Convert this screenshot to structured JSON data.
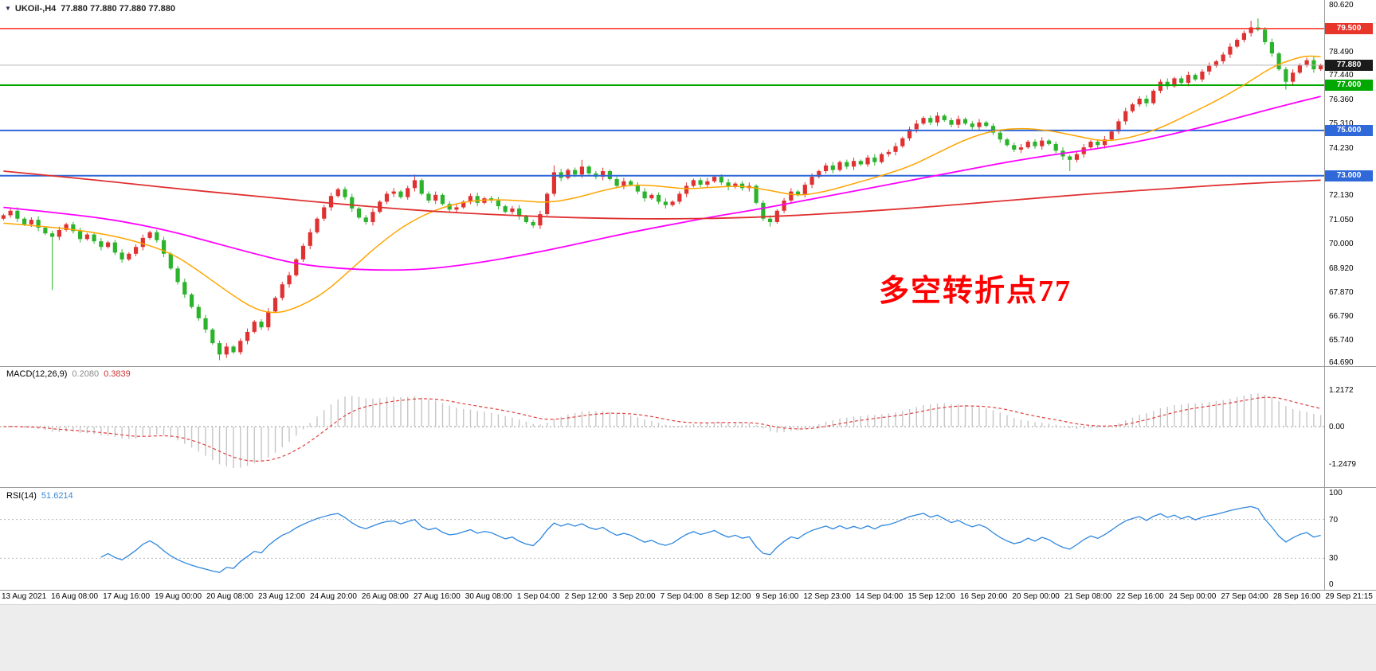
{
  "window": {
    "symbol_label": "UKOil-,H4",
    "quotes": "77.880 77.880 77.880 77.880"
  },
  "annotation": {
    "text": "多空转折点77",
    "color": "#ff0000"
  },
  "indicators": {
    "macd": {
      "label": "MACD(12,26,9)",
      "value_macd": "0.2080",
      "value_signal": "0.3839"
    },
    "rsi": {
      "label": "RSI(14)",
      "value": "51.6214"
    }
  },
  "chart_data": {
    "type": "candlestick",
    "symbol": "UKOil-",
    "timeframe": "H4",
    "price_range": [
      64.69,
      80.62
    ],
    "price_ticks": [
      {
        "text": "80.620",
        "price": 80.62
      },
      {
        "text": "78.490",
        "price": 78.49
      },
      {
        "text": "77.440",
        "price": 77.44
      },
      {
        "text": "76.360",
        "price": 76.36
      },
      {
        "text": "75.310",
        "price": 75.31
      },
      {
        "text": "74.230",
        "price": 74.23
      },
      {
        "text": "72.130",
        "price": 72.13
      },
      {
        "text": "71.050",
        "price": 71.05
      },
      {
        "text": "70.000",
        "price": 70.0
      },
      {
        "text": "68.920",
        "price": 68.92
      },
      {
        "text": "67.870",
        "price": 67.87
      },
      {
        "text": "66.790",
        "price": 66.79
      },
      {
        "text": "65.740",
        "price": 65.74
      },
      {
        "text": "64.690",
        "price": 64.69
      }
    ],
    "level_lines": [
      {
        "text": "79.500",
        "price": 79.5,
        "badge_bg": "#e8352a",
        "line_color": "#ff2b20",
        "line_width": 1.5
      },
      {
        "text": "77.880",
        "price": 77.88,
        "badge_bg": "#1b1b1b",
        "line_color": "#b4b4b4",
        "line_width": 1
      },
      {
        "text": "77.000",
        "price": 77.0,
        "badge_bg": "#00a800",
        "line_color": "#00a800",
        "line_width": 2
      },
      {
        "text": "75.000",
        "price": 75.0,
        "badge_bg": "#2f68d8",
        "line_color": "#2f68d8",
        "line_width": 2
      },
      {
        "text": "73.000",
        "price": 73.0,
        "badge_bg": "#2f68d8",
        "line_color": "#2f68d8",
        "line_width": 2
      }
    ],
    "time_labels": [
      "13 Aug 2021",
      "16 Aug 08:00",
      "17 Aug 16:00",
      "19 Aug 00:00",
      "20 Aug 08:00",
      "23 Aug 12:00",
      "24 Aug 20:00",
      "26 Aug 08:00",
      "27 Aug 16:00",
      "30 Aug 08:00",
      "1 Sep 04:00",
      "2 Sep 12:00",
      "3 Sep 20:00",
      "7 Sep 04:00",
      "8 Sep 12:00",
      "9 Sep 16:00",
      "12 Sep 23:00",
      "14 Sep 04:00",
      "15 Sep 12:00",
      "16 Sep 20:00",
      "20 Sep 00:00",
      "21 Sep 08:00",
      "22 Sep 16:00",
      "24 Sep 00:00",
      "27 Sep 04:00",
      "28 Sep 16:00",
      "29 Sep 21:15"
    ],
    "first_open": 71.1,
    "closes": [
      71.25,
      71.45,
      71.1,
      70.85,
      71.05,
      70.7,
      70.45,
      70.3,
      70.6,
      70.85,
      70.55,
      70.2,
      70.4,
      70.1,
      69.85,
      70.05,
      69.6,
      69.3,
      69.55,
      69.85,
      70.25,
      70.5,
      70.15,
      69.55,
      68.9,
      68.3,
      67.75,
      67.2,
      66.7,
      66.2,
      65.6,
      65.1,
      65.45,
      65.2,
      65.7,
      66.1,
      66.55,
      66.3,
      67.0,
      67.6,
      68.2,
      68.6,
      69.3,
      69.9,
      70.5,
      71.1,
      71.6,
      72.1,
      72.4,
      72.05,
      71.55,
      71.15,
      70.95,
      71.4,
      71.85,
      72.2,
      72.3,
      72.05,
      72.45,
      72.8,
      72.2,
      71.9,
      72.15,
      71.75,
      71.5,
      71.6,
      71.85,
      72.1,
      71.8,
      72.0,
      71.9,
      71.65,
      71.4,
      71.55,
      71.2,
      70.95,
      70.8,
      71.3,
      72.2,
      73.15,
      72.9,
      73.25,
      73.05,
      73.4,
      73.1,
      72.95,
      73.2,
      72.85,
      72.55,
      72.75,
      72.6,
      72.3,
      72.0,
      72.15,
      71.85,
      71.7,
      71.85,
      72.2,
      72.55,
      72.8,
      72.6,
      72.75,
      72.95,
      72.7,
      72.5,
      72.65,
      72.45,
      72.55,
      71.8,
      71.1,
      70.95,
      71.45,
      71.9,
      72.3,
      72.15,
      72.6,
      72.95,
      73.2,
      73.45,
      73.25,
      73.6,
      73.4,
      73.65,
      73.5,
      73.8,
      73.6,
      73.95,
      74.05,
      74.3,
      74.65,
      75.05,
      75.3,
      75.55,
      75.35,
      75.65,
      75.45,
      75.25,
      75.5,
      75.3,
      75.15,
      75.35,
      75.2,
      74.9,
      74.6,
      74.35,
      74.15,
      74.25,
      74.5,
      74.3,
      74.55,
      74.4,
      74.1,
      73.85,
      73.7,
      73.95,
      74.25,
      74.5,
      74.35,
      74.6,
      74.95,
      75.4,
      75.85,
      76.15,
      76.4,
      76.2,
      76.75,
      77.15,
      76.95,
      77.3,
      77.1,
      77.45,
      77.25,
      77.6,
      77.85,
      78.05,
      78.35,
      78.7,
      79.0,
      79.3,
      79.55,
      79.45,
      78.9,
      78.4,
      77.7,
      77.15,
      77.55,
      77.9,
      78.1,
      77.7,
      77.88
    ],
    "wick_overrides": {
      "7": {
        "low": 67.95
      },
      "31": {
        "low": 64.85
      },
      "59": {
        "high": 73.05
      },
      "79": {
        "high": 73.45
      },
      "83": {
        "high": 73.7
      },
      "110": {
        "low": 70.75
      },
      "153": {
        "low": 73.2
      },
      "179": {
        "high": 79.85
      },
      "180": {
        "high": 79.95
      },
      "184": {
        "low": 76.8
      }
    },
    "up_color": "#e03131",
    "down_color": "#2bb32b",
    "moving_averages": [
      {
        "name": "ma-fast",
        "color": "#ffa500",
        "width": 1.5,
        "points": [
          [
            0,
            70.9
          ],
          [
            6,
            70.75
          ],
          [
            12,
            70.55
          ],
          [
            18,
            70.2
          ],
          [
            24,
            69.6
          ],
          [
            28,
            68.8
          ],
          [
            32,
            67.9
          ],
          [
            36,
            67.1
          ],
          [
            39,
            66.9
          ],
          [
            42,
            67.15
          ],
          [
            46,
            67.8
          ],
          [
            50,
            68.9
          ],
          [
            54,
            70.0
          ],
          [
            58,
            70.9
          ],
          [
            62,
            71.5
          ],
          [
            66,
            71.85
          ],
          [
            70,
            71.95
          ],
          [
            74,
            71.9
          ],
          [
            78,
            71.8
          ],
          [
            82,
            72.0
          ],
          [
            86,
            72.35
          ],
          [
            90,
            72.6
          ],
          [
            94,
            72.55
          ],
          [
            98,
            72.4
          ],
          [
            102,
            72.5
          ],
          [
            106,
            72.55
          ],
          [
            110,
            72.35
          ],
          [
            114,
            72.1
          ],
          [
            118,
            72.3
          ],
          [
            122,
            72.65
          ],
          [
            126,
            73.0
          ],
          [
            130,
            73.4
          ],
          [
            134,
            74.0
          ],
          [
            138,
            74.6
          ],
          [
            142,
            75.0
          ],
          [
            146,
            75.1
          ],
          [
            150,
            75.0
          ],
          [
            154,
            74.75
          ],
          [
            158,
            74.5
          ],
          [
            162,
            74.7
          ],
          [
            166,
            75.1
          ],
          [
            170,
            75.7
          ],
          [
            174,
            76.3
          ],
          [
            178,
            77.0
          ],
          [
            182,
            77.8
          ],
          [
            185,
            78.15
          ],
          [
            187,
            78.3
          ],
          [
            189,
            78.25
          ]
        ]
      },
      {
        "name": "ma-mid",
        "color": "#ff00ff",
        "width": 1.8,
        "points": [
          [
            0,
            71.6
          ],
          [
            8,
            71.35
          ],
          [
            16,
            71.05
          ],
          [
            24,
            70.55
          ],
          [
            30,
            70.05
          ],
          [
            36,
            69.55
          ],
          [
            42,
            69.1
          ],
          [
            48,
            68.9
          ],
          [
            54,
            68.82
          ],
          [
            60,
            68.85
          ],
          [
            66,
            69.05
          ],
          [
            72,
            69.35
          ],
          [
            78,
            69.7
          ],
          [
            84,
            70.1
          ],
          [
            90,
            70.5
          ],
          [
            96,
            70.85
          ],
          [
            102,
            71.2
          ],
          [
            108,
            71.5
          ],
          [
            114,
            71.85
          ],
          [
            120,
            72.2
          ],
          [
            126,
            72.55
          ],
          [
            132,
            72.9
          ],
          [
            138,
            73.25
          ],
          [
            144,
            73.6
          ],
          [
            150,
            73.9
          ],
          [
            156,
            74.15
          ],
          [
            162,
            74.45
          ],
          [
            168,
            74.85
          ],
          [
            174,
            75.3
          ],
          [
            180,
            75.8
          ],
          [
            185,
            76.2
          ],
          [
            189,
            76.5
          ]
        ]
      },
      {
        "name": "ma-slow",
        "color": "#e03030",
        "width": 1.8,
        "points": [
          [
            0,
            73.2
          ],
          [
            12,
            72.85
          ],
          [
            24,
            72.45
          ],
          [
            36,
            72.1
          ],
          [
            48,
            71.75
          ],
          [
            60,
            71.45
          ],
          [
            72,
            71.25
          ],
          [
            84,
            71.12
          ],
          [
            96,
            71.08
          ],
          [
            108,
            71.15
          ],
          [
            120,
            71.35
          ],
          [
            132,
            71.6
          ],
          [
            144,
            71.9
          ],
          [
            156,
            72.2
          ],
          [
            168,
            72.45
          ],
          [
            178,
            72.65
          ],
          [
            189,
            72.8
          ]
        ]
      }
    ],
    "macd": {
      "params": {
        "fast": 12,
        "slow": 26,
        "signal": 9
      },
      "histogram_color": "#c6c6c6",
      "signal_color": "#e04040",
      "axis_ticks": [
        {
          "text": "1.2172",
          "value": 1.2172
        },
        {
          "text": "0.00",
          "value": 0
        },
        {
          "text": "-1.2479",
          "value": -1.2479
        }
      ]
    },
    "rsi": {
      "period": 14,
      "color": "#2e86de",
      "levels": [
        70,
        30
      ],
      "axis_ticks": [
        {
          "text": "100",
          "value": 100
        },
        {
          "text": "70",
          "value": 70
        },
        {
          "text": "30",
          "value": 30
        },
        {
          "text": "0",
          "value": 0
        }
      ]
    }
  }
}
